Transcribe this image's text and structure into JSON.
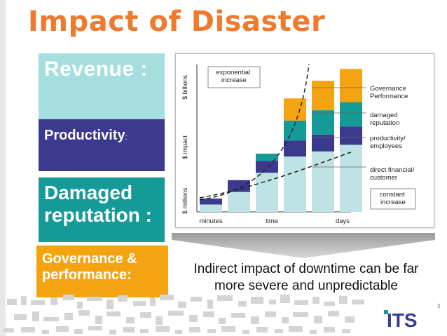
{
  "slide": {
    "title": "Impact of Disaster",
    "page_number": "3",
    "caption": "Indirect impact of downtime can be far more severe and unpredictable",
    "logo_text": "ITS"
  },
  "boxes": {
    "revenue": "Revenue :",
    "productivity": "Productivity",
    "productivity_colon": ":",
    "damaged": "Damaged reputation :",
    "governance": "Governance & performance:"
  },
  "colors": {
    "title": "#ef7a2d",
    "revenue": "#a5dede",
    "productivity": "#3b3a8e",
    "damaged": "#149b98",
    "governance": "#f5a411"
  },
  "chart_data": {
    "type": "bar",
    "stacked": true,
    "categories": [
      "minutes",
      "",
      "",
      "time",
      "",
      "days"
    ],
    "series": [
      {
        "name": "direct financial/ customer",
        "values": [
          1,
          2.7,
          5.3,
          7.5,
          8.2,
          9.1
        ],
        "color": "#bfe3e4"
      },
      {
        "name": "productivity/ employees",
        "values": [
          0.8,
          1.6,
          1.6,
          2.2,
          2.3,
          2.5
        ],
        "color": "#3b3a8e"
      },
      {
        "name": "damaged reputation",
        "values": [
          0,
          0,
          1,
          2.7,
          3.3,
          3.3
        ],
        "color": "#149b98"
      },
      {
        "name": "Governance Performance",
        "values": [
          0,
          0,
          0,
          3,
          4,
          4.5
        ],
        "color": "#f5a411"
      }
    ],
    "xlabels": [
      "minutes",
      "time",
      "days"
    ],
    "ylabels": [
      "$ millions",
      "$ impact",
      "$ billions"
    ],
    "annotations": {
      "exponential": "exponential increase",
      "constant": "constant increase"
    },
    "legend": [
      "Governance Performance",
      "damaged reputation",
      "productivity/ employees",
      "direct financial/ customer"
    ],
    "ylim": [
      0,
      20
    ]
  }
}
